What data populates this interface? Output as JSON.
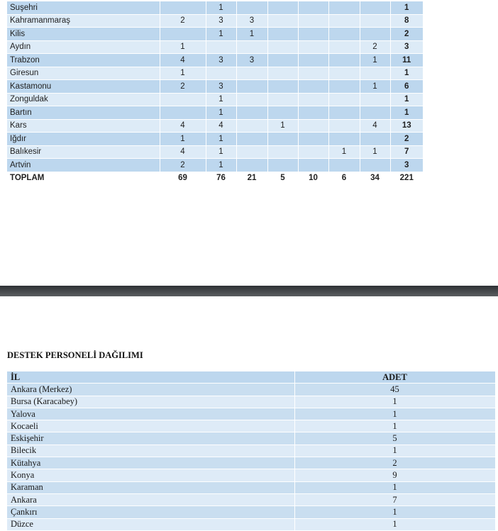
{
  "table1": {
    "rows": [
      {
        "name": "Suşehri",
        "values": [
          "",
          "1",
          "",
          "",
          "",
          "",
          "",
          ""
        ],
        "total": "1"
      },
      {
        "name": "Kahramanmaraş",
        "values": [
          "2",
          "3",
          "3",
          "",
          "",
          "",
          "",
          ""
        ],
        "total": "8"
      },
      {
        "name": "Kilis",
        "values": [
          "",
          "1",
          "1",
          "",
          "",
          "",
          "",
          ""
        ],
        "total": "2"
      },
      {
        "name": "Aydın",
        "values": [
          "1",
          "",
          "",
          "",
          "",
          "",
          "2",
          ""
        ],
        "total": "3"
      },
      {
        "name": "Trabzon",
        "values": [
          "4",
          "3",
          "3",
          "",
          "",
          "",
          "1",
          ""
        ],
        "total": "11"
      },
      {
        "name": "Giresun",
        "values": [
          "1",
          "",
          "",
          "",
          "",
          "",
          "",
          ""
        ],
        "total": "1"
      },
      {
        "name": "Kastamonu",
        "values": [
          "2",
          "3",
          "",
          "",
          "",
          "",
          "1",
          ""
        ],
        "total": "6"
      },
      {
        "name": "Zonguldak",
        "values": [
          "",
          "1",
          "",
          "",
          "",
          "",
          "",
          ""
        ],
        "total": "1"
      },
      {
        "name": "Bartın",
        "values": [
          "",
          "1",
          "",
          "",
          "",
          "",
          "",
          ""
        ],
        "total": "1"
      },
      {
        "name": "Kars",
        "values": [
          "4",
          "4",
          "",
          "1",
          "",
          "",
          "4",
          ""
        ],
        "total": "13"
      },
      {
        "name": "Iğdır",
        "values": [
          "1",
          "1",
          "",
          "",
          "",
          "",
          "",
          ""
        ],
        "total": "2"
      },
      {
        "name": "Balıkesir",
        "values": [
          "4",
          "1",
          "",
          "",
          "",
          "1",
          "1",
          ""
        ],
        "total": "7"
      },
      {
        "name": "Artvin",
        "values": [
          "2",
          "1",
          "",
          "",
          "",
          "",
          "",
          ""
        ],
        "total": "3"
      }
    ],
    "total_row": {
      "name": "TOPLAM",
      "values": [
        "69",
        "76",
        "21",
        "5",
        "10",
        "6",
        "34"
      ],
      "total": "221"
    }
  },
  "section2": {
    "title": "DESTEK PERSONELİ DAĞILIMI",
    "headers": {
      "il": "İL",
      "adet": "ADET"
    },
    "rows": [
      {
        "il": "Ankara (Merkez)",
        "adet": "45"
      },
      {
        "il": "Bursa (Karacabey)",
        "adet": "1"
      },
      {
        "il": "Yalova",
        "adet": "1"
      },
      {
        "il": "Kocaeli",
        "adet": "1"
      },
      {
        "il": "Eskişehir",
        "adet": "5"
      },
      {
        "il": "Bilecik",
        "adet": "1"
      },
      {
        "il": "Kütahya",
        "adet": "2"
      },
      {
        "il": "Konya",
        "adet": "9"
      },
      {
        "il": "Karaman",
        "adet": "1"
      },
      {
        "il": "Ankara",
        "adet": "7"
      },
      {
        "il": "Çankırı",
        "adet": "1"
      },
      {
        "il": "Düzce",
        "adet": "1"
      }
    ]
  },
  "colors": {
    "row_dark": "#bdd7ee",
    "row_light": "#ddebf7",
    "band": "#3a3d40"
  }
}
